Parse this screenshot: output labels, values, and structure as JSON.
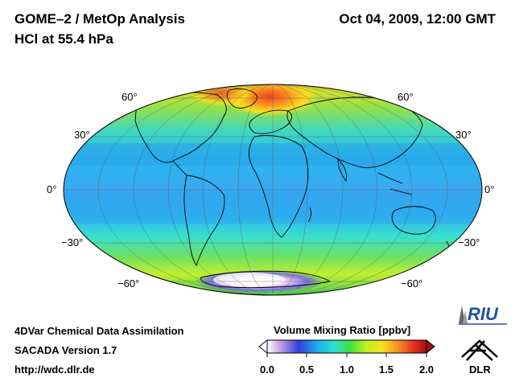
{
  "header": {
    "title": "GOME–2 / MetOp Analysis",
    "subtitle": "HCl at 55.4 hPa",
    "datetime": "Oct 04, 2009, 12:00 GMT"
  },
  "map": {
    "projection": "Hammer-Aitoff (global)",
    "lat_labels_left": [
      "60°",
      "30°",
      "0°",
      "−30°",
      "−60°"
    ],
    "lat_labels_right": [
      "60°",
      "30°",
      "0°",
      "−30°",
      "−60°"
    ]
  },
  "colorbar": {
    "title": "Volume Mixing Ratio [ppbv]",
    "ticks": [
      "0.0",
      "0.5",
      "1.0",
      "1.5",
      "2.0"
    ],
    "colors": [
      "#ffffff",
      "#c8a0e0",
      "#3040e0",
      "#20b0f0",
      "#30e0d0",
      "#40e040",
      "#c0f020",
      "#f8e020",
      "#f89020",
      "#e83020",
      "#a01010"
    ]
  },
  "footer": {
    "line1": "4DVar Chemical Data Assimilation",
    "line2": "SACADA Version 1.7",
    "line3": "http://wdc.dlr.de"
  },
  "logos": {
    "riu": "RIU",
    "dlr": "DLR"
  }
}
